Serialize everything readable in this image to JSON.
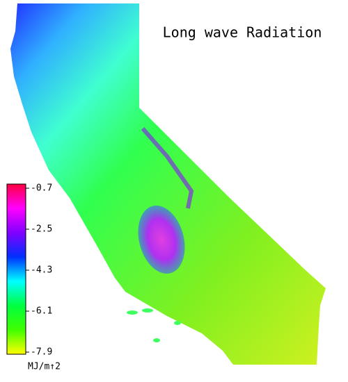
{
  "title": "Long wave Radiation",
  "colorbar": {
    "ticks": [
      -0.7,
      -2.5,
      -4.3,
      -6.1,
      -7.9
    ],
    "colors": [
      "#ff0040",
      "#ff00ff",
      "#8000ff",
      "#0030ff",
      "#00ffff",
      "#00ff40",
      "#40ff00",
      "#ffff00"
    ],
    "unit": "MJ/m↑2"
  }
}
